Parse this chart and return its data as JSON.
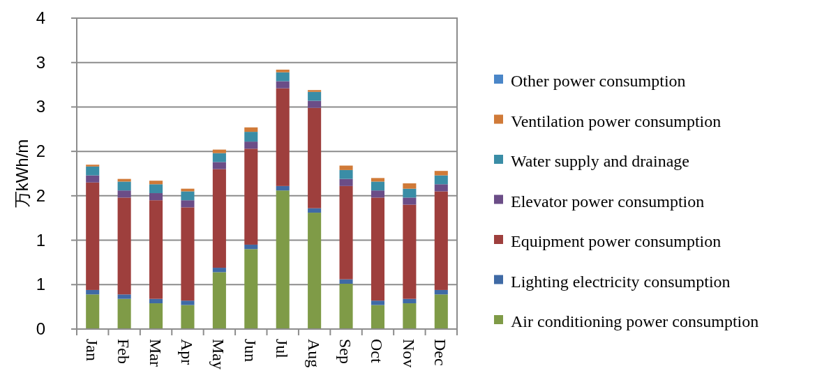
{
  "chart_data": {
    "type": "bar",
    "stacked": true,
    "ylabel": "万kWh/m",
    "categories": [
      "Jan",
      "Feb",
      "Mar",
      "Apr",
      "May",
      "Jun",
      "Jul",
      "Aug",
      "Sep",
      "Oct",
      "Nov",
      "Dec"
    ],
    "ylim": [
      0,
      3.5
    ],
    "yticks": [
      0,
      {
        "value": 0.5,
        "label": "1"
      },
      1,
      {
        "value": 1.5,
        "label": "2"
      },
      2,
      {
        "value": 2.5,
        "label": "3"
      },
      3,
      {
        "value": 3.5,
        "label": "4"
      }
    ],
    "grid": "y",
    "legend": "right",
    "series": [
      {
        "name": "Air conditioning power consumption",
        "color": "#7f9b47",
        "values": [
          0.39,
          0.34,
          0.29,
          0.27,
          0.64,
          0.9,
          1.56,
          1.31,
          0.51,
          0.27,
          0.29,
          0.39
        ]
      },
      {
        "name": "Lighting electricity consumption",
        "color": "#3f6aa5",
        "values": [
          0.05,
          0.05,
          0.05,
          0.05,
          0.05,
          0.05,
          0.05,
          0.05,
          0.05,
          0.05,
          0.05,
          0.05
        ]
      },
      {
        "name": "Equipment power consumption",
        "color": "#9e3f3d",
        "values": [
          1.21,
          1.09,
          1.11,
          1.05,
          1.11,
          1.08,
          1.1,
          1.13,
          1.05,
          1.16,
          1.06,
          1.11
        ]
      },
      {
        "name": "Elevator power consumption",
        "color": "#6b4d87",
        "values": [
          0.08,
          0.08,
          0.08,
          0.08,
          0.08,
          0.08,
          0.08,
          0.08,
          0.08,
          0.08,
          0.08,
          0.08
        ]
      },
      {
        "name": "Water supply and drainage",
        "color": "#3a8da6",
        "values": [
          0.1,
          0.1,
          0.1,
          0.1,
          0.1,
          0.11,
          0.1,
          0.1,
          0.1,
          0.1,
          0.1,
          0.1
        ]
      },
      {
        "name": "Ventilation power consumption",
        "color": "#d07a38",
        "values": [
          0.02,
          0.03,
          0.04,
          0.03,
          0.04,
          0.05,
          0.03,
          0.02,
          0.05,
          0.04,
          0.06,
          0.05
        ]
      },
      {
        "name": "Other power consumption",
        "color": "#4a86c8",
        "values": [
          0,
          0,
          0,
          0,
          0,
          0,
          0,
          0,
          0,
          0,
          0,
          0
        ]
      }
    ]
  }
}
